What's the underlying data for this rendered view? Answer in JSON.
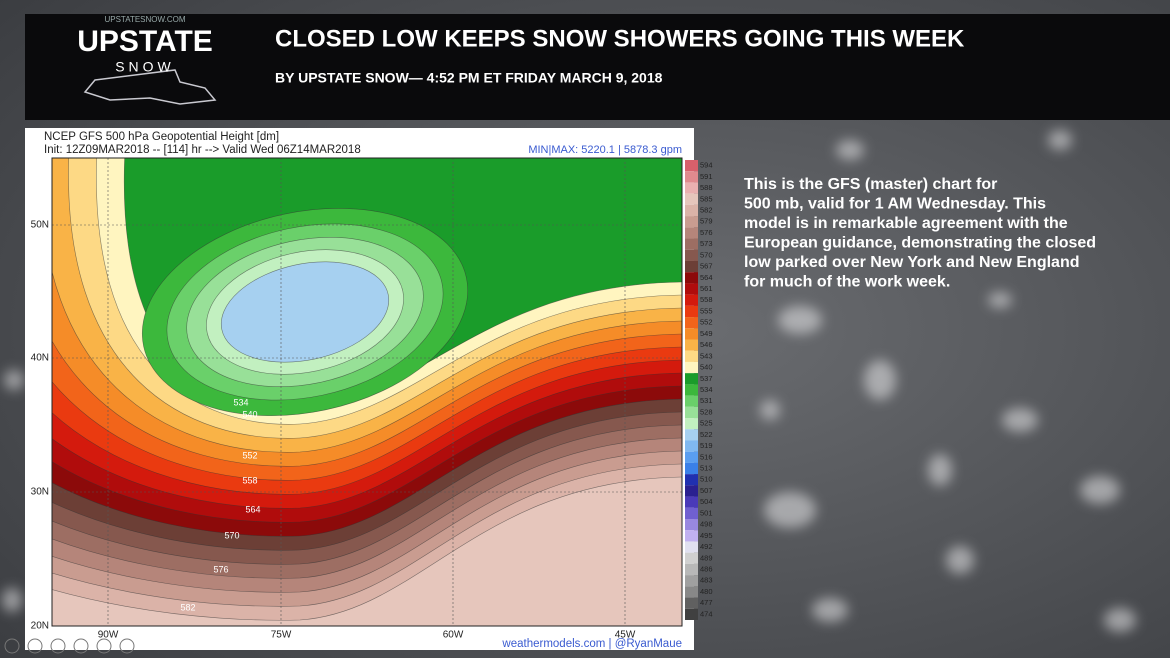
{
  "header": {
    "site": "UPSTATESNOW.COM",
    "logo_top": "UPSTATE",
    "logo_bottom": "SNOW",
    "title": "CLOSED LOW KEEPS SNOW SHOWERS GOING THIS WEEK",
    "byline": "BY UPSTATE SNOW— 4:52 PM ET FRIDAY MARCH 9, 2018"
  },
  "map": {
    "title": "NCEP GFS 500 hPa Geopotential Height [dm]",
    "init": "Init: 12Z09MAR2018 -- [114] hr --> Valid Wed 06Z14MAR2018",
    "minmax": "MIN|MAX: 5220.1 | 5878.3 gpm",
    "credit": "weathermodels.com | @RyanMaue",
    "lat_labels": [
      "50N",
      "40N",
      "30N",
      "20N"
    ],
    "lon_labels": [
      "90W",
      "75W",
      "60W",
      "45W"
    ],
    "contour_labels": [
      534,
      540,
      552,
      558,
      564,
      570,
      576,
      582
    ],
    "colorbar": [
      {
        "label": 594,
        "color": "#d8606b"
      },
      {
        "label": 591,
        "color": "#e08a8e"
      },
      {
        "label": 588,
        "color": "#eab0b0"
      },
      {
        "label": 585,
        "color": "#e6c6bc"
      },
      {
        "label": 582,
        "color": "#dbb3a8"
      },
      {
        "label": 579,
        "color": "#c99c90"
      },
      {
        "label": 576,
        "color": "#b5857a"
      },
      {
        "label": 573,
        "color": "#9d6e63"
      },
      {
        "label": 570,
        "color": "#86584e"
      },
      {
        "label": 567,
        "color": "#6c3f36"
      },
      {
        "label": 564,
        "color": "#8c0a0a"
      },
      {
        "label": 561,
        "color": "#b00c0c"
      },
      {
        "label": 558,
        "color": "#d41a0d"
      },
      {
        "label": 555,
        "color": "#ea3a10"
      },
      {
        "label": 552,
        "color": "#f2641a"
      },
      {
        "label": 549,
        "color": "#f58c28"
      },
      {
        "label": 546,
        "color": "#f9b347"
      },
      {
        "label": 543,
        "color": "#fdd985"
      },
      {
        "label": 540,
        "color": "#fff5c0"
      },
      {
        "label": 537,
        "color": "#1a9c2a"
      },
      {
        "label": 534,
        "color": "#3cb83c"
      },
      {
        "label": 531,
        "color": "#6ad06a"
      },
      {
        "label": 528,
        "color": "#98e098"
      },
      {
        "label": 525,
        "color": "#c2f0c0"
      },
      {
        "label": 522,
        "color": "#a6d0f0"
      },
      {
        "label": 519,
        "color": "#80b8f0"
      },
      {
        "label": 516,
        "color": "#5a9ef0"
      },
      {
        "label": 513,
        "color": "#3a80e8"
      },
      {
        "label": 510,
        "color": "#2030b0"
      },
      {
        "label": 507,
        "color": "#2a2090"
      },
      {
        "label": 504,
        "color": "#4a3ab8"
      },
      {
        "label": 501,
        "color": "#7060d0"
      },
      {
        "label": 498,
        "color": "#9888e0"
      },
      {
        "label": 495,
        "color": "#c0b0f0"
      },
      {
        "label": 492,
        "color": "#e0e0f0"
      },
      {
        "label": 489,
        "color": "#d0d0d0"
      },
      {
        "label": 486,
        "color": "#b8b8b8"
      },
      {
        "label": 483,
        "color": "#a0a0a0"
      },
      {
        "label": 480,
        "color": "#888888"
      },
      {
        "label": 477,
        "color": "#606060"
      },
      {
        "label": 474,
        "color": "#404040"
      }
    ]
  },
  "caption": {
    "lines": [
      "This is the GFS (master) chart for",
      "500 mb, valid for 1 AM Wednesday.  This",
      "model is in remarkable agreement with the",
      "European guidance, demonstrating the closed",
      "low parked over New York and New England",
      "for much of the work week."
    ]
  }
}
